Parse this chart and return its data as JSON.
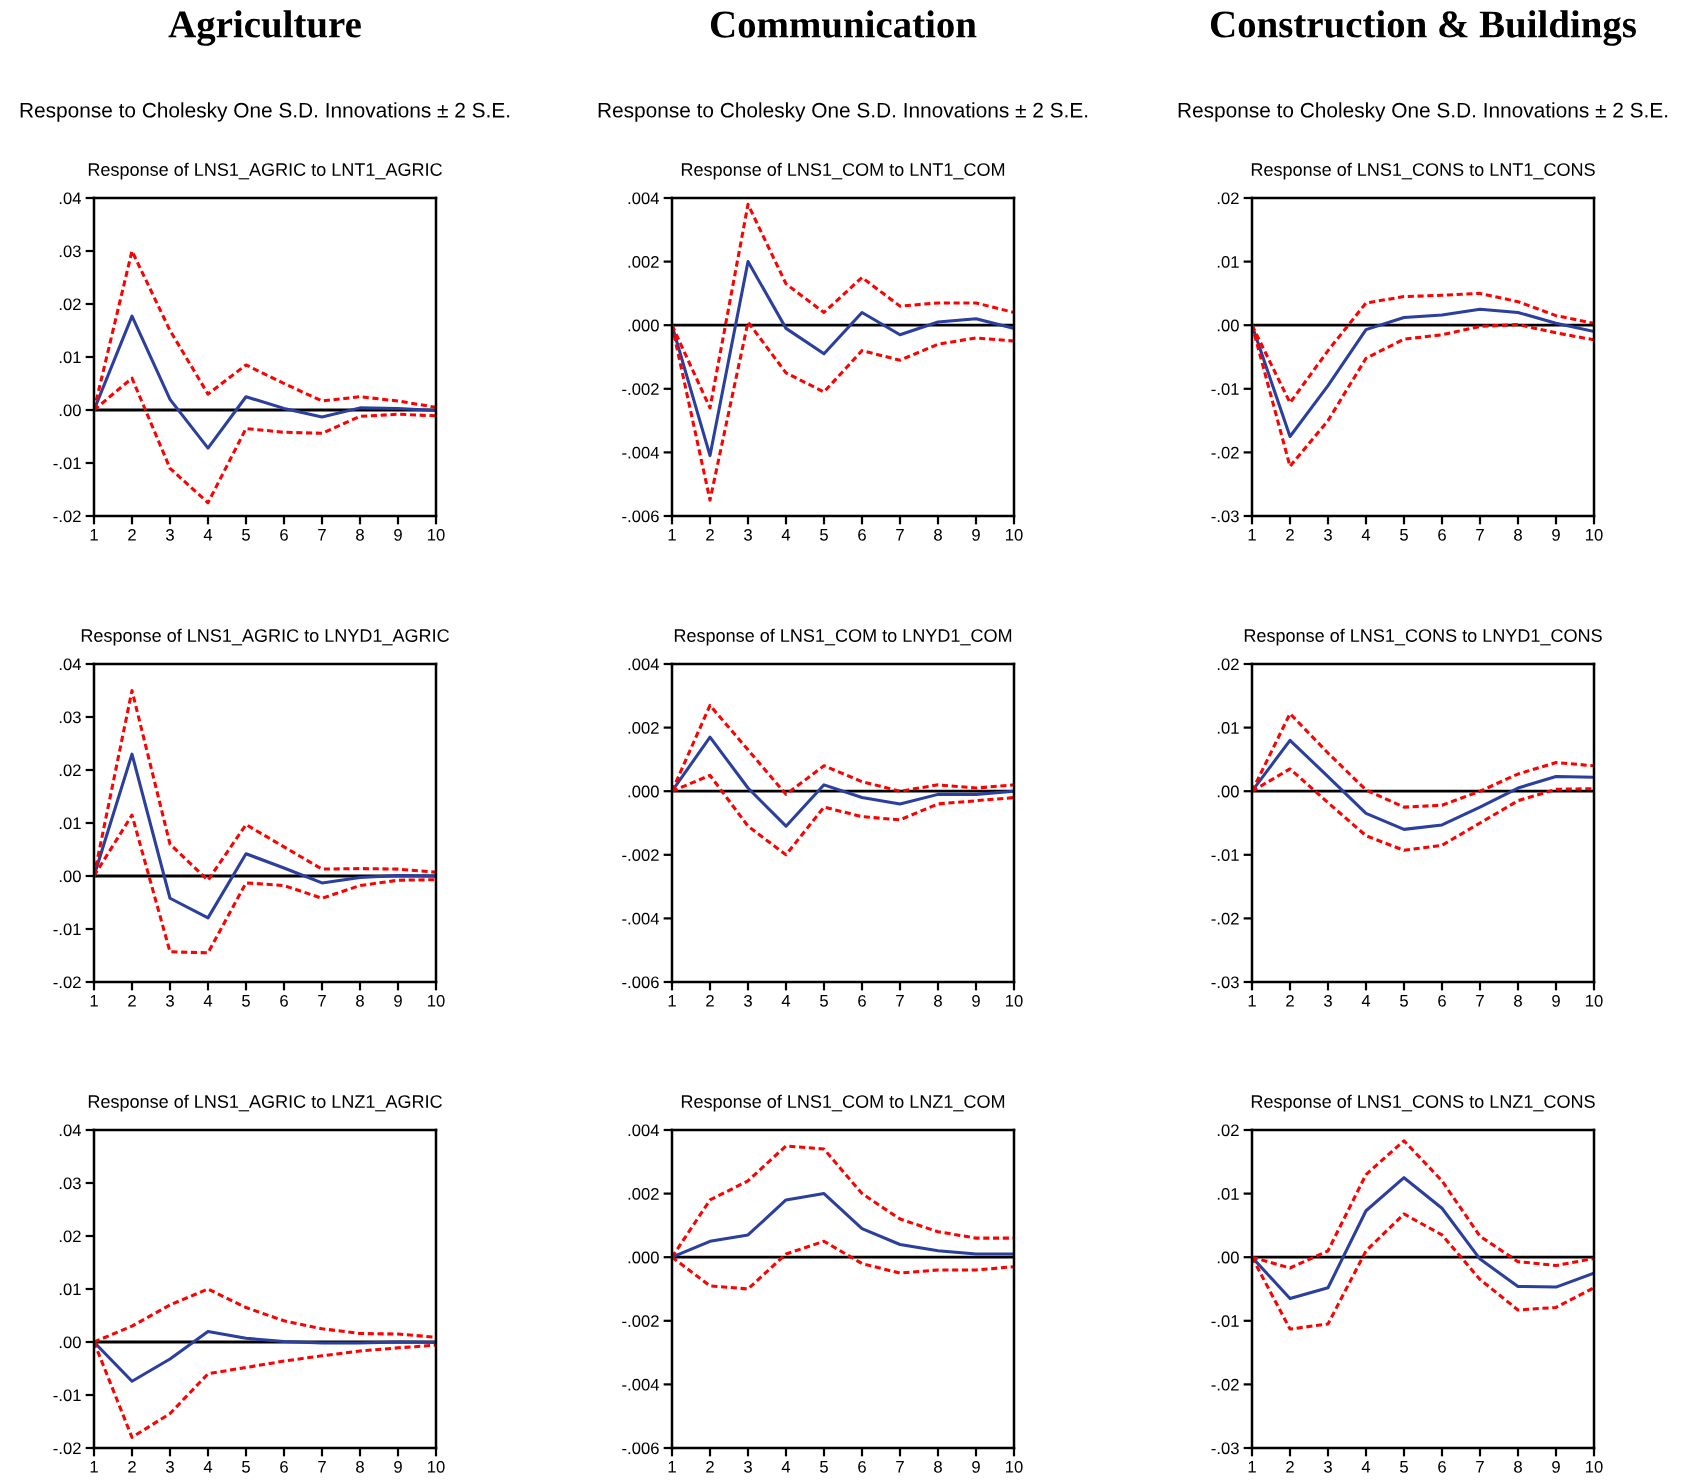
{
  "chart_data": [
    {
      "type": "line",
      "title": "Response of LNS1_AGRIC to LNT1_AGRIC",
      "annotations": [
        "Agriculture",
        "Response to Cholesky One S.D. Innovations ± 2 S.E."
      ],
      "x": [
        1,
        2,
        3,
        4,
        5,
        6,
        7,
        8,
        9,
        10
      ],
      "xlim": [
        1,
        10
      ],
      "xticks": [
        1,
        2,
        3,
        4,
        5,
        6,
        7,
        8,
        9,
        10
      ],
      "ylim": [
        -0.02,
        0.04
      ],
      "yticks": [
        {
          "value": -0.02,
          "label": "-.02"
        },
        {
          "value": -0.01,
          "label": "-.01"
        },
        {
          "value": 0,
          "label": ".00"
        },
        {
          "value": 0.01,
          "label": ".01"
        },
        {
          "value": 0.02,
          "label": ".02"
        },
        {
          "value": 0.03,
          "label": ".03"
        },
        {
          "value": 0.04,
          "label": ".04"
        }
      ],
      "ref_lines": [
        {
          "axis": "y",
          "value": 0,
          "color": "#000000"
        }
      ],
      "grid": false,
      "series": [
        {
          "color": "#2b3f9e",
          "line_style": "solid",
          "values": [
            0,
            0.0177,
            0.002,
            -0.0072,
            0.0025,
            0.0003,
            -0.0013,
            0.0004,
            0.0003,
            -0.0001
          ]
        },
        {
          "color": "#ff0000",
          "line_style": "dotted",
          "values": [
            0,
            0.03,
            0.015,
            0.003,
            0.0085,
            0.005,
            0.0017,
            0.0025,
            0.0017,
            0.0005
          ]
        },
        {
          "color": "#ff0000",
          "line_style": "dotted",
          "values": [
            0,
            0.006,
            -0.011,
            -0.0175,
            -0.0035,
            -0.0042,
            -0.0044,
            -0.0012,
            -0.0008,
            -0.0011
          ]
        }
      ]
    },
    {
      "type": "line",
      "title": "Response of LNS1_COM to LNT1_COM",
      "annotations": [
        "Communication",
        "Response to Cholesky One S.D. Innovations ± 2 S.E."
      ],
      "x": [
        1,
        2,
        3,
        4,
        5,
        6,
        7,
        8,
        9,
        10
      ],
      "xlim": [
        1,
        10
      ],
      "xticks": [
        1,
        2,
        3,
        4,
        5,
        6,
        7,
        8,
        9,
        10
      ],
      "ylim": [
        -0.006,
        0.004
      ],
      "yticks": [
        {
          "value": -0.006,
          "label": "-.006"
        },
        {
          "value": -0.004,
          "label": "-.004"
        },
        {
          "value": -0.002,
          "label": "-.002"
        },
        {
          "value": 0,
          "label": ".000"
        },
        {
          "value": 0.002,
          "label": ".002"
        },
        {
          "value": 0.004,
          "label": ".004"
        }
      ],
      "ref_lines": [
        {
          "axis": "y",
          "value": 0,
          "color": "#000000"
        }
      ],
      "grid": false,
      "series": [
        {
          "color": "#2b3f9e",
          "line_style": "solid",
          "values": [
            0,
            -0.0041,
            0.002,
            -0.0001,
            -0.0009,
            0.0004,
            -0.0003,
            0.0001,
            0.0002,
            -0.0001
          ]
        },
        {
          "color": "#ff0000",
          "line_style": "dotted",
          "values": [
            0,
            -0.0026,
            0.0038,
            0.0013,
            0.0004,
            0.0015,
            0.0006,
            0.0007,
            0.0007,
            0.0004
          ]
        },
        {
          "color": "#ff0000",
          "line_style": "dotted",
          "values": [
            0,
            -0.0055,
            0.0001,
            -0.0015,
            -0.0021,
            -0.0008,
            -0.0011,
            -0.0006,
            -0.0004,
            -0.0005
          ]
        }
      ]
    },
    {
      "type": "line",
      "title": "Response of LNS1_CONS to LNT1_CONS",
      "annotations": [
        "Construction & Buildings",
        "Response to Cholesky One S.D. Innovations ± 2 S.E."
      ],
      "x": [
        1,
        2,
        3,
        4,
        5,
        6,
        7,
        8,
        9,
        10
      ],
      "xlim": [
        1,
        10
      ],
      "xticks": [
        1,
        2,
        3,
        4,
        5,
        6,
        7,
        8,
        9,
        10
      ],
      "ylim": [
        -0.03,
        0.02
      ],
      "yticks": [
        {
          "value": -0.03,
          "label": "-.03"
        },
        {
          "value": -0.02,
          "label": "-.02"
        },
        {
          "value": -0.01,
          "label": "-.01"
        },
        {
          "value": 0,
          "label": ".00"
        },
        {
          "value": 0.01,
          "label": ".01"
        },
        {
          "value": 0.02,
          "label": ".02"
        }
      ],
      "ref_lines": [
        {
          "axis": "y",
          "value": 0,
          "color": "#000000"
        }
      ],
      "grid": false,
      "series": [
        {
          "color": "#2b3f9e",
          "line_style": "solid",
          "values": [
            0,
            -0.0175,
            -0.0095,
            -0.0007,
            0.0012,
            0.0016,
            0.0025,
            0.002,
            0.0003,
            -0.001
          ]
        },
        {
          "color": "#ff0000",
          "line_style": "dotted",
          "values": [
            0,
            -0.0122,
            -0.004,
            0.0035,
            0.0045,
            0.0047,
            0.005,
            0.0037,
            0.0015,
            0.0003
          ]
        },
        {
          "color": "#ff0000",
          "line_style": "dotted",
          "values": [
            0,
            -0.0222,
            -0.015,
            -0.0052,
            -0.0022,
            -0.0015,
            -0.0002,
            0.0001,
            -0.0012,
            -0.0023
          ]
        }
      ]
    },
    {
      "type": "line",
      "title": "Response of LNS1_AGRIC to LNYD1_AGRIC",
      "x": [
        1,
        2,
        3,
        4,
        5,
        6,
        7,
        8,
        9,
        10
      ],
      "xlim": [
        1,
        10
      ],
      "xticks": [
        1,
        2,
        3,
        4,
        5,
        6,
        7,
        8,
        9,
        10
      ],
      "ylim": [
        -0.02,
        0.04
      ],
      "yticks": [
        {
          "value": -0.02,
          "label": "-.02"
        },
        {
          "value": -0.01,
          "label": "-.01"
        },
        {
          "value": 0,
          "label": ".00"
        },
        {
          "value": 0.01,
          "label": ".01"
        },
        {
          "value": 0.02,
          "label": ".02"
        },
        {
          "value": 0.03,
          "label": ".03"
        },
        {
          "value": 0.04,
          "label": ".04"
        }
      ],
      "ref_lines": [
        {
          "axis": "y",
          "value": 0,
          "color": "#000000"
        }
      ],
      "grid": false,
      "series": [
        {
          "color": "#2b3f9e",
          "line_style": "solid",
          "values": [
            0,
            0.023,
            -0.0042,
            -0.0079,
            0.0042,
            0.0015,
            -0.0013,
            -0.0003,
            0.0001,
            0
          ]
        },
        {
          "color": "#ff0000",
          "line_style": "dotted",
          "values": [
            0,
            0.035,
            0.006,
            -0.0008,
            0.0097,
            0.0055,
            0.0013,
            0.0014,
            0.0013,
            0.0007
          ]
        },
        {
          "color": "#ff0000",
          "line_style": "dotted",
          "values": [
            0,
            0.0115,
            -0.0143,
            -0.0145,
            -0.0013,
            -0.0018,
            -0.0042,
            -0.0018,
            -0.0008,
            -0.0007
          ]
        }
      ]
    },
    {
      "type": "line",
      "title": "Response of LNS1_COM to LNYD1_COM",
      "x": [
        1,
        2,
        3,
        4,
        5,
        6,
        7,
        8,
        9,
        10
      ],
      "xlim": [
        1,
        10
      ],
      "xticks": [
        1,
        2,
        3,
        4,
        5,
        6,
        7,
        8,
        9,
        10
      ],
      "ylim": [
        -0.006,
        0.004
      ],
      "yticks": [
        {
          "value": -0.006,
          "label": "-.006"
        },
        {
          "value": -0.004,
          "label": "-.004"
        },
        {
          "value": -0.002,
          "label": "-.002"
        },
        {
          "value": 0,
          "label": ".000"
        },
        {
          "value": 0.002,
          "label": ".002"
        },
        {
          "value": 0.004,
          "label": ".004"
        }
      ],
      "ref_lines": [
        {
          "axis": "y",
          "value": 0,
          "color": "#000000"
        }
      ],
      "grid": false,
      "series": [
        {
          "color": "#2b3f9e",
          "line_style": "solid",
          "values": [
            0,
            0.0017,
            0.0001,
            -0.0011,
            0.0002,
            -0.0002,
            -0.0004,
            -0.0001,
            -0.0001,
            0
          ]
        },
        {
          "color": "#ff0000",
          "line_style": "dotted",
          "values": [
            0,
            0.0027,
            0.0013,
            -0.0001,
            0.0008,
            0.0003,
            0,
            0.0002,
            0.0001,
            0.0002
          ]
        },
        {
          "color": "#ff0000",
          "line_style": "dotted",
          "values": [
            0,
            0.0005,
            -0.0011,
            -0.002,
            -0.0005,
            -0.0008,
            -0.0009,
            -0.0004,
            -0.0003,
            -0.0002
          ]
        }
      ]
    },
    {
      "type": "line",
      "title": "Response of LNS1_CONS to LNYD1_CONS",
      "x": [
        1,
        2,
        3,
        4,
        5,
        6,
        7,
        8,
        9,
        10
      ],
      "xlim": [
        1,
        10
      ],
      "xticks": [
        1,
        2,
        3,
        4,
        5,
        6,
        7,
        8,
        9,
        10
      ],
      "ylim": [
        -0.03,
        0.02
      ],
      "yticks": [
        {
          "value": -0.03,
          "label": "-.03"
        },
        {
          "value": -0.02,
          "label": "-.02"
        },
        {
          "value": -0.01,
          "label": "-.01"
        },
        {
          "value": 0,
          "label": ".00"
        },
        {
          "value": 0.01,
          "label": ".01"
        },
        {
          "value": 0.02,
          "label": ".02"
        }
      ],
      "ref_lines": [
        {
          "axis": "y",
          "value": 0,
          "color": "#000000"
        }
      ],
      "grid": false,
      "series": [
        {
          "color": "#2b3f9e",
          "line_style": "solid",
          "values": [
            0,
            0.008,
            0.0023,
            -0.0035,
            -0.006,
            -0.0053,
            -0.0025,
            0.0005,
            0.0023,
            0.0022
          ]
        },
        {
          "color": "#ff0000",
          "line_style": "dotted",
          "values": [
            0,
            0.0122,
            0.006,
            0.0002,
            -0.0025,
            -0.0022,
            0,
            0.0027,
            0.0045,
            0.004
          ]
        },
        {
          "color": "#ff0000",
          "line_style": "dotted",
          "values": [
            0,
            0.0035,
            -0.0018,
            -0.007,
            -0.0093,
            -0.0085,
            -0.005,
            -0.0015,
            0.0003,
            0.0004
          ]
        }
      ]
    },
    {
      "type": "line",
      "title": "Response of LNS1_AGRIC to LNZ1_AGRIC",
      "x": [
        1,
        2,
        3,
        4,
        5,
        6,
        7,
        8,
        9,
        10
      ],
      "xlim": [
        1,
        10
      ],
      "xticks": [
        1,
        2,
        3,
        4,
        5,
        6,
        7,
        8,
        9,
        10
      ],
      "ylim": [
        -0.02,
        0.04
      ],
      "yticks": [
        {
          "value": -0.02,
          "label": "-.02"
        },
        {
          "value": -0.01,
          "label": "-.01"
        },
        {
          "value": 0,
          "label": ".00"
        },
        {
          "value": 0.01,
          "label": ".01"
        },
        {
          "value": 0.02,
          "label": ".02"
        },
        {
          "value": 0.03,
          "label": ".03"
        },
        {
          "value": 0.04,
          "label": ".04"
        }
      ],
      "ref_lines": [
        {
          "axis": "y",
          "value": 0,
          "color": "#000000"
        }
      ],
      "grid": false,
      "series": [
        {
          "color": "#2b3f9e",
          "line_style": "solid",
          "values": [
            0,
            -0.0074,
            -0.0032,
            0.002,
            0.0007,
            0.0001,
            -0.0002,
            -0.0002,
            0,
            -0.0001
          ]
        },
        {
          "color": "#ff0000",
          "line_style": "dotted",
          "values": [
            0,
            0.003,
            0.007,
            0.01,
            0.0065,
            0.004,
            0.0025,
            0.0016,
            0.0015,
            0.0009
          ]
        },
        {
          "color": "#ff0000",
          "line_style": "dotted",
          "values": [
            0,
            -0.018,
            -0.0135,
            -0.006,
            -0.0048,
            -0.0036,
            -0.0026,
            -0.0017,
            -0.0011,
            -0.0006
          ]
        }
      ]
    },
    {
      "type": "line",
      "title": "Response of LNS1_COM to LNZ1_COM",
      "x": [
        1,
        2,
        3,
        4,
        5,
        6,
        7,
        8,
        9,
        10
      ],
      "xlim": [
        1,
        10
      ],
      "xticks": [
        1,
        2,
        3,
        4,
        5,
        6,
        7,
        8,
        9,
        10
      ],
      "ylim": [
        -0.006,
        0.004
      ],
      "yticks": [
        {
          "value": -0.006,
          "label": "-.006"
        },
        {
          "value": -0.004,
          "label": "-.004"
        },
        {
          "value": -0.002,
          "label": "-.002"
        },
        {
          "value": 0,
          "label": ".000"
        },
        {
          "value": 0.002,
          "label": ".002"
        },
        {
          "value": 0.004,
          "label": ".004"
        }
      ],
      "ref_lines": [
        {
          "axis": "y",
          "value": 0,
          "color": "#000000"
        }
      ],
      "grid": false,
      "series": [
        {
          "color": "#2b3f9e",
          "line_style": "solid",
          "values": [
            0,
            0.0005,
            0.0007,
            0.0018,
            0.002,
            0.0009,
            0.0004,
            0.0002,
            0.0001,
            0.0001
          ]
        },
        {
          "color": "#ff0000",
          "line_style": "dotted",
          "values": [
            0,
            0.0018,
            0.0024,
            0.0035,
            0.0034,
            0.002,
            0.0012,
            0.0008,
            0.0006,
            0.0006
          ]
        },
        {
          "color": "#ff0000",
          "line_style": "dotted",
          "values": [
            0,
            -0.0009,
            -0.001,
            0.0001,
            0.0005,
            -0.0002,
            -0.0005,
            -0.0004,
            -0.0004,
            -0.0003
          ]
        }
      ]
    },
    {
      "type": "line",
      "title": "Response of LNS1_CONS to LNZ1_CONS",
      "x": [
        1,
        2,
        3,
        4,
        5,
        6,
        7,
        8,
        9,
        10
      ],
      "xlim": [
        1,
        10
      ],
      "xticks": [
        1,
        2,
        3,
        4,
        5,
        6,
        7,
        8,
        9,
        10
      ],
      "ylim": [
        -0.03,
        0.02
      ],
      "yticks": [
        {
          "value": -0.03,
          "label": "-.03"
        },
        {
          "value": -0.02,
          "label": "-.02"
        },
        {
          "value": -0.01,
          "label": "-.01"
        },
        {
          "value": 0,
          "label": ".00"
        },
        {
          "value": 0.01,
          "label": ".01"
        },
        {
          "value": 0.02,
          "label": ".02"
        }
      ],
      "ref_lines": [
        {
          "axis": "y",
          "value": 0,
          "color": "#000000"
        }
      ],
      "grid": false,
      "series": [
        {
          "color": "#2b3f9e",
          "line_style": "solid",
          "values": [
            0,
            -0.0065,
            -0.0048,
            0.0073,
            0.0125,
            0.0077,
            -0.0003,
            -0.0046,
            -0.0047,
            -0.0025
          ]
        },
        {
          "color": "#ff0000",
          "line_style": "dotted",
          "values": [
            0,
            -0.0017,
            0.001,
            0.013,
            0.0183,
            0.012,
            0.0033,
            -0.0007,
            -0.0013,
            -0.0002
          ]
        },
        {
          "color": "#ff0000",
          "line_style": "dotted",
          "values": [
            0,
            -0.0113,
            -0.0105,
            0.001,
            0.0068,
            0.0035,
            -0.0035,
            -0.0083,
            -0.0079,
            -0.0048
          ]
        }
      ]
    }
  ]
}
